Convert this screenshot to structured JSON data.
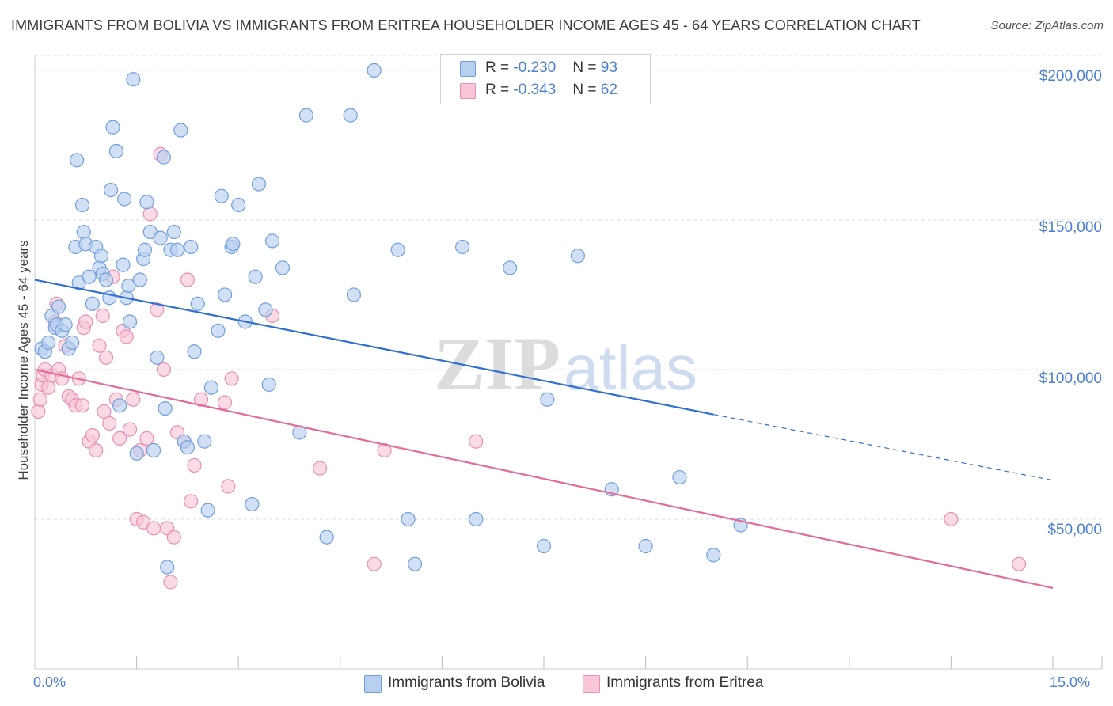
{
  "header": {
    "title": "IMMIGRANTS FROM BOLIVIA VS IMMIGRANTS FROM ERITREA HOUSEHOLDER INCOME AGES 45 - 64 YEARS CORRELATION CHART",
    "source": "Source: ZipAtlas.com"
  },
  "watermark": {
    "zip": "ZIP",
    "atlas": "atlas"
  },
  "legend": {
    "bolivia": {
      "r_label": "R = ",
      "r_value": "-0.230",
      "n_label": "N = ",
      "n_value": "93"
    },
    "eritrea": {
      "r_label": "R = ",
      "r_value": "-0.343",
      "n_label": "N = ",
      "n_value": "62"
    }
  },
  "colors": {
    "bolivia_fill": "#b8d0f0",
    "bolivia_stroke": "#6f9fdc",
    "bolivia_line": "#2f6fcf",
    "eritrea_fill": "#f8c6d6",
    "eritrea_stroke": "#e98fb0",
    "eritrea_line": "#e36c97",
    "axis_text": "#4a7fd4",
    "grid": "#dddddd"
  },
  "chart_data": {
    "type": "scatter",
    "title": "IMMIGRANTS FROM BOLIVIA VS IMMIGRANTS FROM ERITREA HOUSEHOLDER INCOME AGES 45 - 64 YEARS CORRELATION CHART",
    "xlabel": "",
    "ylabel": "Householder Income Ages 45 - 64 years",
    "xlim": [
      0,
      15
    ],
    "ylim": [
      0,
      205000
    ],
    "x_tick_labels": [
      "0.0%",
      "15.0%"
    ],
    "y_ticks": [
      50000,
      100000,
      150000,
      200000
    ],
    "y_tick_labels": [
      "$50,000",
      "$100,000",
      "$150,000",
      "$200,000"
    ],
    "grid": true,
    "legend_position": "top-center",
    "series": [
      {
        "name": "Immigrants from Bolivia",
        "trend": {
          "x": [
            0,
            10.0
          ],
          "y": [
            130000,
            85000
          ],
          "dashed_to": [
            15.0,
            63000
          ]
        },
        "points": [
          [
            0.1,
            107000
          ],
          [
            0.15,
            106000
          ],
          [
            0.2,
            109000
          ],
          [
            0.25,
            118000
          ],
          [
            0.3,
            114000
          ],
          [
            0.32,
            115000
          ],
          [
            0.35,
            121000
          ],
          [
            0.4,
            113000
          ],
          [
            0.45,
            115000
          ],
          [
            0.5,
            107000
          ],
          [
            0.55,
            109000
          ],
          [
            0.6,
            141000
          ],
          [
            0.62,
            170000
          ],
          [
            0.65,
            129000
          ],
          [
            0.7,
            155000
          ],
          [
            0.72,
            146000
          ],
          [
            0.75,
            142000
          ],
          [
            0.8,
            131000
          ],
          [
            0.85,
            122000
          ],
          [
            0.9,
            141000
          ],
          [
            0.95,
            134000
          ],
          [
            0.98,
            138000
          ],
          [
            1.0,
            132000
          ],
          [
            1.05,
            130000
          ],
          [
            1.1,
            124000
          ],
          [
            1.12,
            160000
          ],
          [
            1.15,
            181000
          ],
          [
            1.2,
            173000
          ],
          [
            1.25,
            88000
          ],
          [
            1.3,
            135000
          ],
          [
            1.32,
            157000
          ],
          [
            1.35,
            124000
          ],
          [
            1.38,
            128000
          ],
          [
            1.4,
            116000
          ],
          [
            1.45,
            197000
          ],
          [
            1.5,
            72000
          ],
          [
            1.55,
            130000
          ],
          [
            1.6,
            137000
          ],
          [
            1.62,
            140000
          ],
          [
            1.65,
            156000
          ],
          [
            1.7,
            146000
          ],
          [
            1.75,
            73000
          ],
          [
            1.8,
            104000
          ],
          [
            1.85,
            144000
          ],
          [
            1.9,
            171000
          ],
          [
            1.92,
            87000
          ],
          [
            1.95,
            34000
          ],
          [
            2.0,
            140000
          ],
          [
            2.05,
            146000
          ],
          [
            2.1,
            140000
          ],
          [
            2.15,
            180000
          ],
          [
            2.2,
            76000
          ],
          [
            2.25,
            74000
          ],
          [
            2.3,
            141000
          ],
          [
            2.35,
            106000
          ],
          [
            2.4,
            122000
          ],
          [
            2.5,
            76000
          ],
          [
            2.55,
            53000
          ],
          [
            2.6,
            94000
          ],
          [
            2.7,
            113000
          ],
          [
            2.75,
            158000
          ],
          [
            2.8,
            125000
          ],
          [
            2.9,
            141000
          ],
          [
            2.92,
            142000
          ],
          [
            3.0,
            155000
          ],
          [
            3.1,
            116000
          ],
          [
            3.2,
            55000
          ],
          [
            3.25,
            131000
          ],
          [
            3.3,
            162000
          ],
          [
            3.4,
            120000
          ],
          [
            3.45,
            95000
          ],
          [
            3.5,
            143000
          ],
          [
            3.65,
            134000
          ],
          [
            3.9,
            79000
          ],
          [
            4.0,
            185000
          ],
          [
            4.3,
            44000
          ],
          [
            4.65,
            185000
          ],
          [
            4.7,
            125000
          ],
          [
            5.0,
            200000
          ],
          [
            5.35,
            140000
          ],
          [
            5.5,
            50000
          ],
          [
            5.6,
            35000
          ],
          [
            6.3,
            141000
          ],
          [
            6.5,
            50000
          ],
          [
            7.0,
            134000
          ],
          [
            7.5,
            41000
          ],
          [
            7.55,
            90000
          ],
          [
            8.0,
            138000
          ],
          [
            8.5,
            60000
          ],
          [
            9.0,
            41000
          ],
          [
            9.5,
            64000
          ],
          [
            10.0,
            38000
          ],
          [
            10.4,
            48000
          ]
        ]
      },
      {
        "name": "Immigrants from Eritrea",
        "trend": {
          "x": [
            0,
            15.0
          ],
          "y": [
            100000,
            27000
          ]
        },
        "points": [
          [
            0.05,
            86000
          ],
          [
            0.08,
            90000
          ],
          [
            0.1,
            95000
          ],
          [
            0.12,
            98000
          ],
          [
            0.15,
            100000
          ],
          [
            0.2,
            94000
          ],
          [
            0.25,
            98000
          ],
          [
            0.3,
            116000
          ],
          [
            0.32,
            122000
          ],
          [
            0.35,
            100000
          ],
          [
            0.4,
            97000
          ],
          [
            0.45,
            108000
          ],
          [
            0.5,
            91000
          ],
          [
            0.55,
            90000
          ],
          [
            0.6,
            88000
          ],
          [
            0.65,
            97000
          ],
          [
            0.7,
            88000
          ],
          [
            0.72,
            114000
          ],
          [
            0.75,
            116000
          ],
          [
            0.8,
            76000
          ],
          [
            0.85,
            78000
          ],
          [
            0.9,
            73000
          ],
          [
            0.95,
            108000
          ],
          [
            1.0,
            118000
          ],
          [
            1.02,
            86000
          ],
          [
            1.05,
            104000
          ],
          [
            1.1,
            82000
          ],
          [
            1.15,
            131000
          ],
          [
            1.2,
            90000
          ],
          [
            1.25,
            77000
          ],
          [
            1.3,
            113000
          ],
          [
            1.35,
            111000
          ],
          [
            1.4,
            80000
          ],
          [
            1.45,
            90000
          ],
          [
            1.5,
            50000
          ],
          [
            1.55,
            73000
          ],
          [
            1.6,
            49000
          ],
          [
            1.65,
            77000
          ],
          [
            1.7,
            152000
          ],
          [
            1.75,
            47000
          ],
          [
            1.8,
            120000
          ],
          [
            1.85,
            172000
          ],
          [
            1.9,
            100000
          ],
          [
            1.95,
            47000
          ],
          [
            2.0,
            29000
          ],
          [
            2.05,
            44000
          ],
          [
            2.1,
            79000
          ],
          [
            2.2,
            76000
          ],
          [
            2.25,
            130000
          ],
          [
            2.3,
            56000
          ],
          [
            2.35,
            68000
          ],
          [
            2.45,
            90000
          ],
          [
            2.8,
            89000
          ],
          [
            2.85,
            61000
          ],
          [
            2.9,
            97000
          ],
          [
            3.5,
            118000
          ],
          [
            4.2,
            67000
          ],
          [
            5.0,
            35000
          ],
          [
            5.15,
            73000
          ],
          [
            6.5,
            76000
          ],
          [
            13.5,
            50000
          ],
          [
            14.5,
            35000
          ]
        ]
      }
    ]
  },
  "bottom_legend": {
    "bolivia_label": "Immigrants from Bolivia",
    "eritrea_label": "Immigrants from Eritrea"
  },
  "axes": {
    "x_left": "0.0%",
    "x_right": "15.0%",
    "y_200": "$200,000",
    "y_150": "$150,000",
    "y_100": "$100,000",
    "y_50": "$50,000"
  }
}
